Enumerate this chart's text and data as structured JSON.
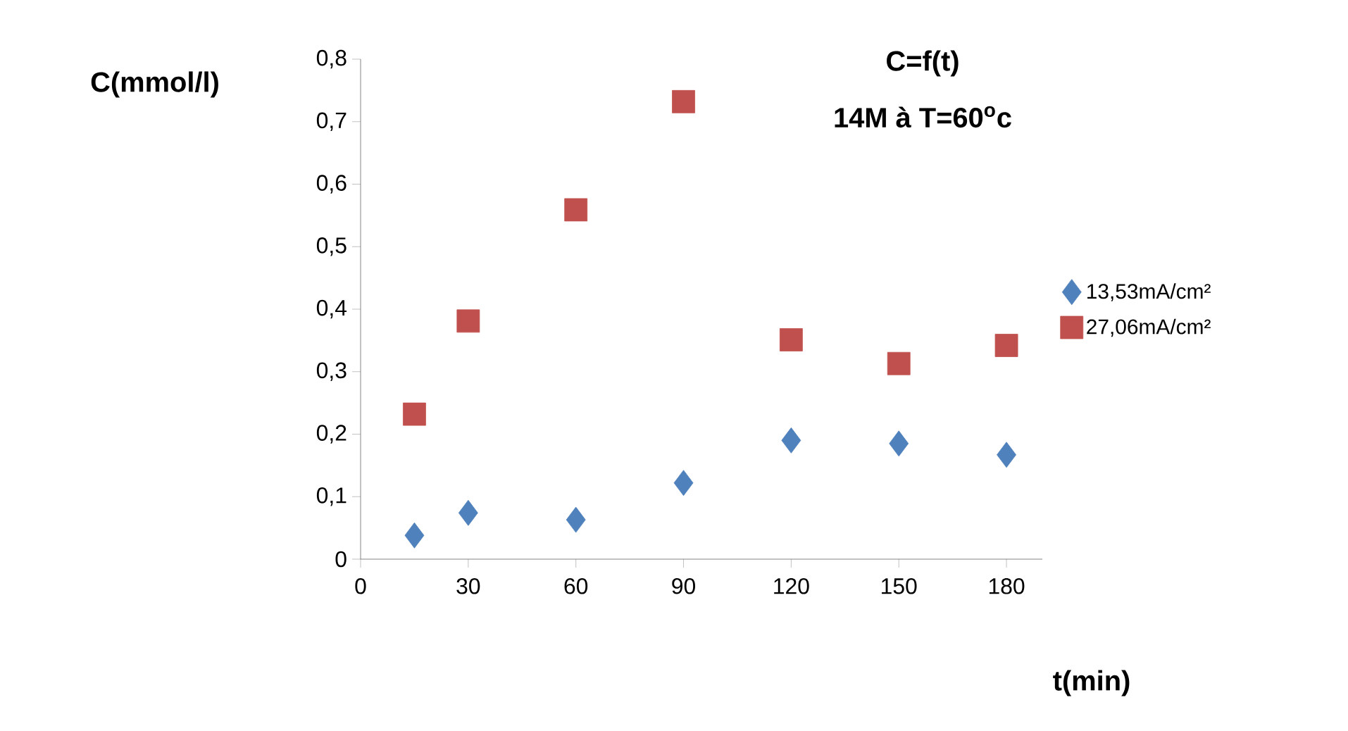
{
  "chart_data": {
    "type": "scatter",
    "title": "C=f(t)",
    "subtitle": "14M à T=60$^{o}$c",
    "xlabel": "t(min)",
    "ylabel": "C(mmol/l)",
    "x": [
      15,
      30,
      60,
      90,
      120,
      150,
      180
    ],
    "series": [
      {
        "name": "13,53mA/cm²",
        "color": "#4f81bd",
        "marker": "diamond",
        "values": [
          0.038,
          0.074,
          0.063,
          0.122,
          0.19,
          0.185,
          0.167
        ]
      },
      {
        "name": "27,06mA/cm²",
        "color": "#c0504d",
        "marker": "square",
        "values": [
          0.232,
          0.381,
          0.559,
          0.732,
          0.351,
          0.313,
          0.342
        ]
      }
    ],
    "xlim": [
      0,
      190
    ],
    "xticks": [
      0,
      30,
      60,
      90,
      120,
      150,
      180
    ],
    "ylim": [
      0,
      0.8
    ],
    "yticks": [
      0,
      {
        "value": 0.1,
        "label": "0,1"
      },
      {
        "value": 0.2,
        "label": "0,2"
      },
      {
        "value": 0.3,
        "label": "0,3"
      },
      {
        "value": 0.4,
        "label": "0,4"
      },
      {
        "value": 0.5,
        "label": "0,5"
      },
      {
        "value": 0.6,
        "label": "0,6"
      },
      {
        "value": 0.7,
        "label": "0,7"
      },
      {
        "value": 0.8,
        "label": "0,8"
      }
    ],
    "grid": false,
    "legend": "right"
  }
}
